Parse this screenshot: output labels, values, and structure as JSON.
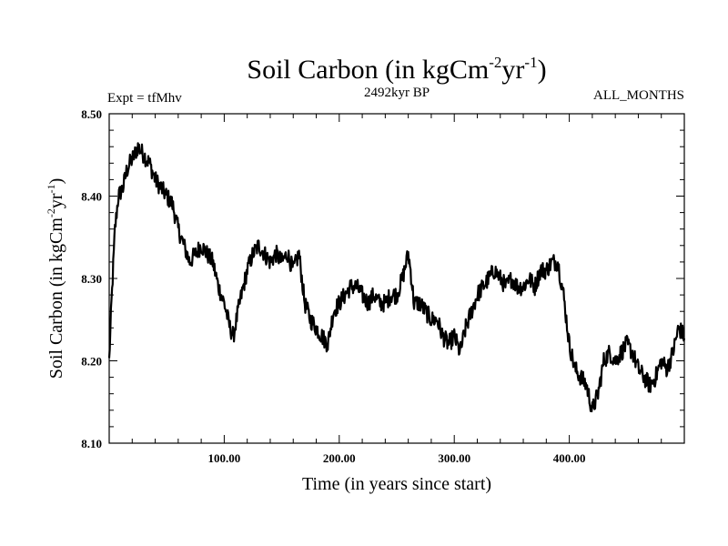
{
  "chart_data": {
    "type": "line",
    "title": {
      "main": "Soil Carbon (in kgCm",
      "sup1": "-2",
      "mid": "yr",
      "sup2": "-1",
      "end": ")"
    },
    "subtitle_left": "Expt = tfMhv",
    "subtitle_center": "2492kyr BP",
    "subtitle_right": "ALL_MONTHS",
    "xlabel": "Time (in years since start)",
    "ylabel": {
      "main": "Soil Carbon (in kgCm",
      "sup1": "-2",
      "mid": "yr",
      "sup2": "-1",
      "end": ")"
    },
    "xlim": [
      0,
      500
    ],
    "ylim": [
      8.1,
      8.5
    ],
    "x_ticks": [
      100,
      200,
      300,
      400
    ],
    "x_tick_labels": [
      "100.00",
      "200.00",
      "300.00",
      "400.00"
    ],
    "y_ticks": [
      8.1,
      8.2,
      8.3,
      8.4,
      8.5
    ],
    "y_tick_labels": [
      "8.10",
      "8.20",
      "8.30",
      "8.40",
      "8.50"
    ],
    "line_color": "#000000",
    "series": [
      {
        "name": "Soil Carbon",
        "x": [
          0,
          2,
          5,
          8,
          12,
          15,
          18,
          22,
          25,
          30,
          35,
          40,
          45,
          50,
          55,
          60,
          65,
          70,
          75,
          80,
          85,
          90,
          95,
          100,
          105,
          108,
          112,
          115,
          120,
          125,
          130,
          135,
          140,
          145,
          150,
          155,
          160,
          165,
          170,
          175,
          180,
          185,
          190,
          195,
          200,
          205,
          210,
          215,
          220,
          225,
          230,
          235,
          240,
          245,
          250,
          255,
          260,
          262,
          265,
          270,
          275,
          280,
          285,
          290,
          295,
          300,
          305,
          310,
          315,
          320,
          325,
          330,
          335,
          340,
          345,
          350,
          355,
          360,
          365,
          370,
          375,
          380,
          385,
          390,
          395,
          400,
          405,
          410,
          415,
          420,
          425,
          430,
          435,
          440,
          445,
          450,
          455,
          460,
          465,
          470,
          475,
          480,
          485,
          490,
          495,
          500
        ],
        "y": [
          8.2,
          8.27,
          8.36,
          8.4,
          8.41,
          8.43,
          8.44,
          8.45,
          8.46,
          8.45,
          8.44,
          8.42,
          8.41,
          8.4,
          8.39,
          8.36,
          8.34,
          8.32,
          8.33,
          8.34,
          8.33,
          8.32,
          8.29,
          8.27,
          8.24,
          8.23,
          8.26,
          8.28,
          8.31,
          8.33,
          8.34,
          8.33,
          8.32,
          8.33,
          8.32,
          8.33,
          8.31,
          8.33,
          8.27,
          8.25,
          8.24,
          8.23,
          8.22,
          8.26,
          8.27,
          8.28,
          8.29,
          8.29,
          8.28,
          8.27,
          8.28,
          8.27,
          8.27,
          8.28,
          8.28,
          8.3,
          8.33,
          8.31,
          8.27,
          8.27,
          8.26,
          8.25,
          8.25,
          8.23,
          8.22,
          8.23,
          8.21,
          8.24,
          8.26,
          8.28,
          8.29,
          8.3,
          8.31,
          8.3,
          8.29,
          8.3,
          8.29,
          8.29,
          8.3,
          8.29,
          8.31,
          8.31,
          8.32,
          8.32,
          8.28,
          8.22,
          8.19,
          8.18,
          8.17,
          8.14,
          8.16,
          8.2,
          8.21,
          8.2,
          8.21,
          8.22,
          8.21,
          8.19,
          8.18,
          8.17,
          8.18,
          8.2,
          8.19,
          8.21,
          8.24,
          8.23
        ]
      }
    ]
  }
}
